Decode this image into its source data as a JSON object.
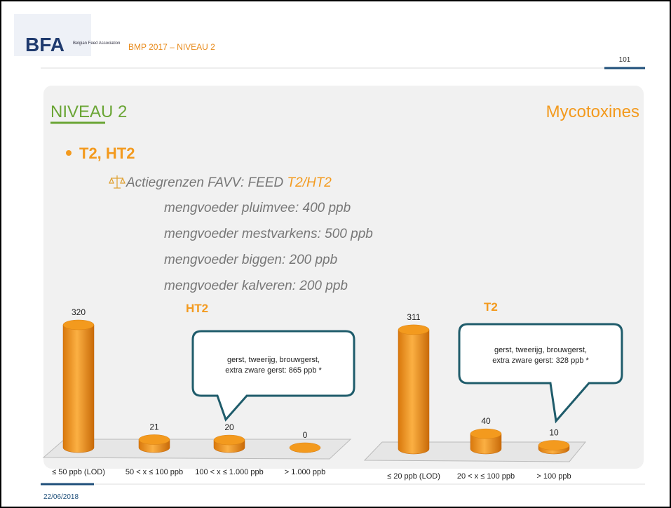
{
  "header": {
    "logo": "BFA",
    "logo_subtitle": "Belgian Feed Association",
    "title": "BMP 2017 – NIVEAU 2",
    "page_number": "101"
  },
  "slide": {
    "heading": "NIVEAU 2",
    "topic": "Mycotoxines",
    "bullet": "T2, HT2",
    "sub_bullet_prefix": "Actiegrenzen FAVV: FEED ",
    "sub_bullet_highlight": "T2/HT2",
    "limits": [
      "mengvoeder pluimvee: 400 ppb",
      "mengvoeder mestvarkens: 500 ppb",
      "mengvoeder biggen: 200 ppb",
      "mengvoeder kalveren: 200 ppb"
    ]
  },
  "chart_data": [
    {
      "type": "bar",
      "title": "HT2",
      "categories": [
        "≤ 50 ppb (LOD)",
        "50 < x ≤ 100 ppb",
        "100 < x ≤ 1.000 ppb",
        "> 1.000 ppb"
      ],
      "values": [
        320,
        21,
        20,
        0
      ],
      "color": "#f39a1e",
      "callout": [
        "gerst, tweerijg, brouwgerst,",
        "extra zware gerst: 865 ppb *"
      ]
    },
    {
      "type": "bar",
      "title": "T2",
      "categories": [
        "≤ 20 ppb (LOD)",
        "20 < x ≤ 100 ppb",
        "> 100 ppb"
      ],
      "values": [
        311,
        40,
        10
      ],
      "color": "#f39a1e",
      "callout": [
        "gerst, tweerijg, brouwgerst,",
        "extra zware gerst: 328 ppb *"
      ]
    }
  ],
  "footer": {
    "date": "22/06/2018"
  }
}
